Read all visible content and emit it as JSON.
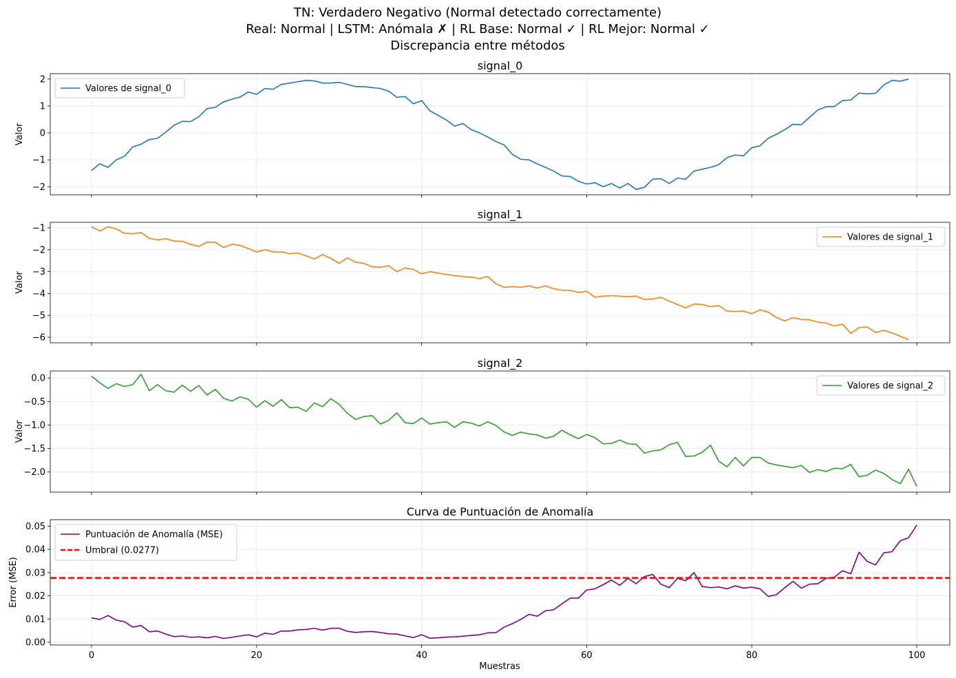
{
  "figure": {
    "suptitle_lines": [
      "TN: Verdadero Negativo (Normal detectado correctamente)",
      "Real: Normal | LSTM: Anómala ✗ | RL Base: Normal ✓ | RL Mejor: Normal ✓",
      "Discrepancia entre métodos"
    ],
    "x_label": "Muestras"
  },
  "chart_data": [
    {
      "type": "line",
      "title": "signal_0",
      "ylabel": "Valor",
      "xlim": [
        -5,
        104
      ],
      "ylim": [
        -2.3,
        2.2
      ],
      "yticks": [
        -2,
        -1,
        0,
        1,
        2
      ],
      "yticklabels": [
        "−2",
        "−1",
        "0",
        "1",
        "2"
      ],
      "xticks": [
        0,
        20,
        40,
        60,
        80,
        100
      ],
      "show_xticklabels": false,
      "grid": true,
      "legend_position": "top-left",
      "series": [
        {
          "name": "Valores de signal_0",
          "color": "#1f77b4",
          "values": [
            -1.4,
            -1.15,
            -1.28,
            -1.0,
            -0.87,
            -0.52,
            -0.42,
            -0.25,
            -0.2,
            0.03,
            0.28,
            0.43,
            0.42,
            0.6,
            0.9,
            0.95,
            1.15,
            1.25,
            1.33,
            1.52,
            1.43,
            1.65,
            1.62,
            1.8,
            1.85,
            1.9,
            1.95,
            1.93,
            1.85,
            1.85,
            1.88,
            1.8,
            1.72,
            1.72,
            1.68,
            1.65,
            1.55,
            1.32,
            1.35,
            1.08,
            1.2,
            0.82,
            0.65,
            0.48,
            0.25,
            0.35,
            0.12,
            0.0,
            -0.15,
            -0.32,
            -0.45,
            -0.8,
            -0.98,
            -1.0,
            -1.15,
            -1.28,
            -1.42,
            -1.6,
            -1.62,
            -1.8,
            -1.9,
            -1.85,
            -2.0,
            -1.88,
            -2.05,
            -1.88,
            -2.1,
            -2.02,
            -1.72,
            -1.7,
            -1.88,
            -1.68,
            -1.72,
            -1.42,
            -1.35,
            -1.28,
            -1.18,
            -0.92,
            -0.82,
            -0.85,
            -0.55,
            -0.48,
            -0.2,
            -0.05,
            0.12,
            0.32,
            0.3,
            0.58,
            0.85,
            0.97,
            0.98,
            1.2,
            1.22,
            1.48,
            1.45,
            1.47,
            1.78,
            1.95,
            1.92,
            2.0
          ]
        }
      ]
    },
    {
      "type": "line",
      "title": "signal_1",
      "ylabel": "Valor",
      "xlim": [
        -5,
        104
      ],
      "ylim": [
        -6.25,
        -0.75
      ],
      "yticks": [
        -6,
        -5,
        -4,
        -3,
        -2,
        -1
      ],
      "yticklabels": [
        "−6",
        "−5",
        "−4",
        "−3",
        "−2",
        "−1"
      ],
      "xticks": [
        0,
        20,
        40,
        60,
        80,
        100
      ],
      "show_xticklabels": false,
      "grid": true,
      "legend_position": "top-right",
      "series": [
        {
          "name": "Valores de signal_1",
          "color": "#ff7f0e",
          "values": [
            -0.95,
            -1.15,
            -0.95,
            -1.05,
            -1.25,
            -1.27,
            -1.22,
            -1.48,
            -1.55,
            -1.5,
            -1.6,
            -1.62,
            -1.75,
            -1.85,
            -1.65,
            -1.66,
            -1.9,
            -1.75,
            -1.8,
            -1.95,
            -2.1,
            -2.0,
            -2.1,
            -2.1,
            -2.18,
            -2.15,
            -2.28,
            -2.42,
            -2.22,
            -2.4,
            -2.62,
            -2.37,
            -2.57,
            -2.62,
            -2.78,
            -2.8,
            -2.73,
            -3.0,
            -2.83,
            -2.9,
            -3.1,
            -3.0,
            -3.07,
            -3.13,
            -3.18,
            -3.23,
            -3.25,
            -3.32,
            -3.22,
            -3.55,
            -3.72,
            -3.68,
            -3.72,
            -3.65,
            -3.75,
            -3.65,
            -3.78,
            -3.85,
            -3.85,
            -3.95,
            -3.9,
            -4.17,
            -4.12,
            -4.1,
            -4.12,
            -4.15,
            -4.12,
            -4.27,
            -4.25,
            -4.17,
            -4.35,
            -4.5,
            -4.65,
            -4.48,
            -4.5,
            -4.6,
            -4.55,
            -4.8,
            -4.82,
            -4.8,
            -4.92,
            -4.75,
            -4.85,
            -5.1,
            -5.25,
            -5.1,
            -5.18,
            -5.2,
            -5.3,
            -5.35,
            -5.48,
            -5.4,
            -5.82,
            -5.55,
            -5.53,
            -5.78,
            -5.68,
            -5.8,
            -5.95,
            -6.1
          ]
        }
      ]
    },
    {
      "type": "line",
      "title": "signal_2",
      "ylabel": "Valor",
      "xlim": [
        -5,
        104
      ],
      "ylim": [
        -2.43,
        0.15
      ],
      "yticks": [
        -2.0,
        -1.5,
        -1.0,
        -0.5,
        0.0
      ],
      "yticklabels": [
        "−2.0",
        "−1.5",
        "−1.0",
        "−0.5",
        "0.0"
      ],
      "xticks": [
        0,
        20,
        40,
        60,
        80,
        100
      ],
      "show_xticklabels": false,
      "grid": true,
      "legend_position": "top-right",
      "series": [
        {
          "name": "Valores de signal_2",
          "color": "#2ca02c",
          "values": [
            0.04,
            -0.1,
            -0.22,
            -0.12,
            -0.18,
            -0.14,
            0.08,
            -0.27,
            -0.14,
            -0.27,
            -0.3,
            -0.15,
            -0.28,
            -0.16,
            -0.36,
            -0.24,
            -0.43,
            -0.49,
            -0.4,
            -0.45,
            -0.62,
            -0.48,
            -0.6,
            -0.46,
            -0.63,
            -0.62,
            -0.71,
            -0.53,
            -0.61,
            -0.44,
            -0.56,
            -0.75,
            -0.88,
            -0.82,
            -0.8,
            -0.98,
            -0.9,
            -0.74,
            -0.95,
            -0.97,
            -0.85,
            -0.98,
            -0.95,
            -0.93,
            -1.05,
            -0.93,
            -0.96,
            -1.02,
            -0.93,
            -1.01,
            -1.15,
            -1.22,
            -1.15,
            -1.19,
            -1.21,
            -1.28,
            -1.24,
            -1.11,
            -1.21,
            -1.29,
            -1.2,
            -1.27,
            -1.4,
            -1.39,
            -1.32,
            -1.4,
            -1.41,
            -1.6,
            -1.55,
            -1.53,
            -1.42,
            -1.37,
            -1.67,
            -1.66,
            -1.58,
            -1.43,
            -1.77,
            -1.89,
            -1.69,
            -1.87,
            -1.69,
            -1.69,
            -1.81,
            -1.85,
            -1.88,
            -1.91,
            -1.86,
            -2.01,
            -1.95,
            -1.99,
            -1.92,
            -1.93,
            -1.84,
            -2.1,
            -2.07,
            -1.96,
            -2.03,
            -2.16,
            -2.25,
            -1.94,
            -2.31
          ]
        }
      ]
    },
    {
      "type": "line",
      "title": "Curva de Puntuación de Anomalía",
      "ylabel": "Error (MSE)",
      "xlabel": "Muestras",
      "xlim": [
        -5,
        104
      ],
      "ylim": [
        -0.0012,
        0.0528
      ],
      "yticks": [
        0.0,
        0.01,
        0.02,
        0.03,
        0.04,
        0.05
      ],
      "yticklabels": [
        "0.00",
        "0.01",
        "0.02",
        "0.03",
        "0.04",
        "0.05"
      ],
      "xticks": [
        0,
        20,
        40,
        60,
        80,
        100
      ],
      "xticklabels": [
        "0",
        "20",
        "40",
        "60",
        "80",
        "100"
      ],
      "show_xticklabels": true,
      "grid": true,
      "legend_position": "top-left",
      "series": [
        {
          "name": "Puntuación de Anomalía (MSE)",
          "color": "#800080",
          "values": [
            0.0105,
            0.0098,
            0.0115,
            0.0095,
            0.0088,
            0.0065,
            0.0072,
            0.0045,
            0.0048,
            0.0035,
            0.0024,
            0.0027,
            0.0021,
            0.0023,
            0.0019,
            0.0025,
            0.0016,
            0.0021,
            0.0027,
            0.0032,
            0.0023,
            0.0039,
            0.0034,
            0.0048,
            0.0048,
            0.0053,
            0.0055,
            0.006,
            0.0052,
            0.006,
            0.006,
            0.0047,
            0.0042,
            0.0045,
            0.0046,
            0.0042,
            0.0036,
            0.0035,
            0.0027,
            0.002,
            0.0032,
            0.0017,
            0.0019,
            0.0022,
            0.0023,
            0.0026,
            0.0029,
            0.0032,
            0.004,
            0.0041,
            0.0065,
            0.008,
            0.0098,
            0.012,
            0.0112,
            0.0135,
            0.014,
            0.0165,
            0.019,
            0.019,
            0.0225,
            0.023,
            0.0248,
            0.0268,
            0.0245,
            0.0275,
            0.0252,
            0.0283,
            0.0292,
            0.025,
            0.0235,
            0.0275,
            0.0265,
            0.03,
            0.024,
            0.0235,
            0.0238,
            0.023,
            0.0243,
            0.0233,
            0.0237,
            0.023,
            0.0197,
            0.0205,
            0.0235,
            0.0262,
            0.0233,
            0.025,
            0.0252,
            0.0275,
            0.028,
            0.0308,
            0.0295,
            0.0388,
            0.0348,
            0.0333,
            0.0385,
            0.039,
            0.0437,
            0.045,
            0.0505
          ]
        },
        {
          "name": "Umbral (0.0277)",
          "color": "#ff0000",
          "dashed": true,
          "constant": 0.0277
        }
      ]
    }
  ]
}
